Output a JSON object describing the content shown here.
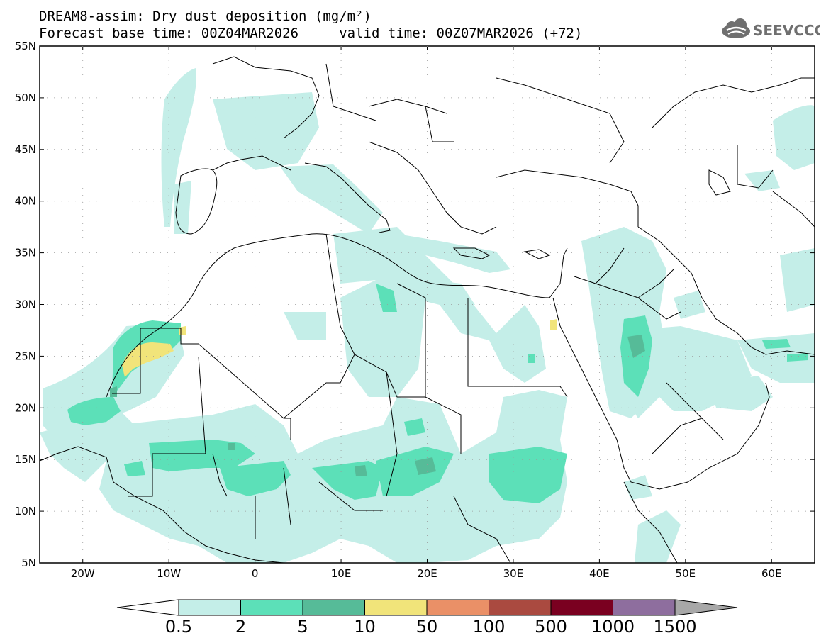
{
  "header": {
    "title_line1": "DREAM8-assim: Dry dust deposition (mg/m²)",
    "title_line2": "Forecast base time: 00Z04MAR2026     valid time: 00Z07MAR2026 (+72)",
    "logo_text": "SEEVCCC",
    "logo_icon": "cloud-icon"
  },
  "map": {
    "lon_range": [
      -25,
      65
    ],
    "lat_range": [
      5,
      55
    ],
    "lon_tick_labels": [
      "20W",
      "10W",
      "0",
      "10E",
      "20E",
      "30E",
      "40E",
      "50E",
      "60E"
    ],
    "lat_tick_labels": [
      "55N",
      "50N",
      "45N",
      "40N",
      "35N",
      "30N",
      "25N",
      "20N",
      "15N",
      "10N",
      "5N"
    ]
  },
  "colorbar": {
    "tick_labels": [
      "0.5",
      "2",
      "5",
      "10",
      "50",
      "100",
      "500",
      "1000",
      "1500"
    ],
    "colors": [
      "#c4eee8",
      "#5ce0b8",
      "#56bb98",
      "#f1e47a",
      "#ea9067",
      "#aa4a40",
      "#7a0020",
      "#8e6e9e"
    ],
    "under_color": "#ffffff",
    "over_color": "#a8a8a8"
  }
}
